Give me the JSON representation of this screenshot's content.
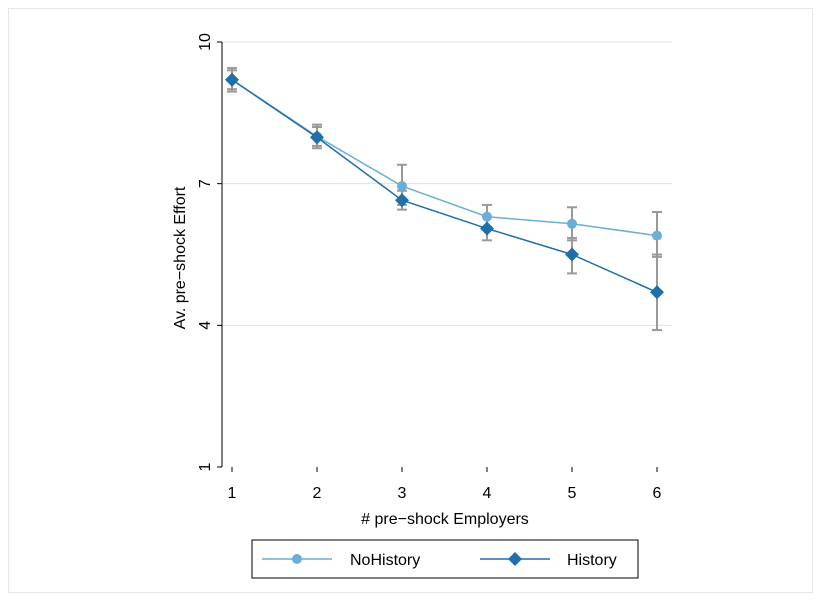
{
  "chart_data": {
    "type": "line",
    "xlabel": "# pre−shock Employers",
    "ylabel": "Av. pre−shock Effort",
    "x": [
      1,
      2,
      3,
      4,
      5,
      6
    ],
    "xticks": [
      "1",
      "2",
      "3",
      "4",
      "5",
      "6"
    ],
    "yticks": [
      "1",
      "4",
      "7",
      "10"
    ],
    "ylim": [
      1,
      10
    ],
    "grid": true,
    "legend_position": "bottom",
    "series": [
      {
        "name": "NoHistory",
        "marker": "circle",
        "color": "#6baed6",
        "values": [
          9.2,
          8.0,
          6.95,
          6.3,
          6.15,
          5.9
        ],
        "ci_low": [
          8.95,
          7.75,
          6.55,
          6.05,
          5.8,
          5.45
        ],
        "ci_high": [
          9.45,
          8.25,
          7.4,
          6.55,
          6.5,
          6.4
        ]
      },
      {
        "name": "History",
        "marker": "diamond",
        "color": "#1f6fa8",
        "values": [
          9.2,
          7.98,
          6.65,
          6.05,
          5.5,
          4.7
        ],
        "ci_low": [
          9.0,
          7.8,
          6.45,
          5.8,
          5.1,
          3.9
        ],
        "ci_high": [
          9.4,
          8.2,
          6.85,
          6.3,
          5.85,
          5.5
        ]
      }
    ]
  }
}
